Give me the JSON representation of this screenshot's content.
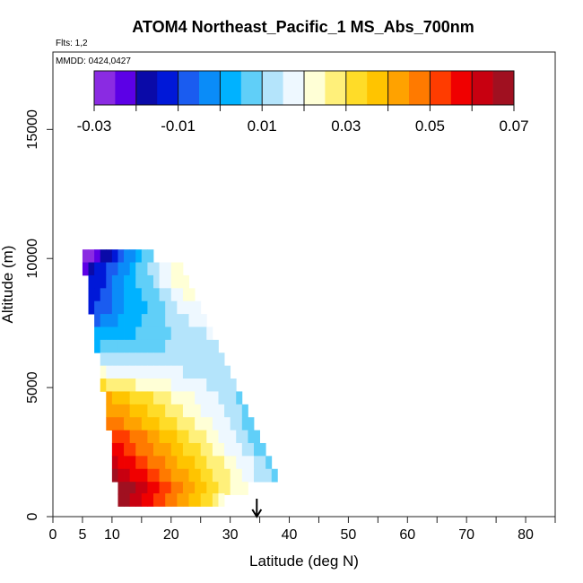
{
  "chart_data": {
    "type": "heatmap",
    "title": "ATOM4 Northeast_Pacific_1 MS_Abs_700nm",
    "annotations": {
      "flights": "Flts: 1,2",
      "dates": "MMDD: 0424,0427"
    },
    "xlabel": "Latitude (deg N)",
    "ylabel": "Altitude (m)",
    "xlim": [
      0,
      85
    ],
    "ylim": [
      0,
      18000
    ],
    "x_ticks": [
      0,
      5,
      10,
      20,
      30,
      40,
      50,
      60,
      70,
      80
    ],
    "x_minor_ticks": [
      15,
      25,
      35,
      45,
      55,
      65,
      75,
      85
    ],
    "y_ticks": [
      0,
      5000,
      10000,
      15000
    ],
    "grid": false,
    "colorbar": {
      "min": -0.03,
      "max": 0.07,
      "ticks": [
        "-0.03",
        "-0.01",
        "0.01",
        "0.03",
        "0.05",
        "0.07"
      ],
      "colors": [
        "#8a2be2",
        "#5c00e6",
        "#0a0aa8",
        "#0018d8",
        "#1a5cf0",
        "#0a8cf8",
        "#00b2ff",
        "#60cff8",
        "#b4e4fb",
        "#eef8ff",
        "#ffffd6",
        "#fff07a",
        "#ffdc28",
        "#ffc400",
        "#ffa200",
        "#ff7a00",
        "#ff3c00",
        "#f00000",
        "#c80010",
        "#a01020"
      ]
    },
    "marker_latitude": 34.5,
    "rows": [
      {
        "alt": 10100,
        "lat_start": 5,
        "lat_end": 17,
        "v_start": -0.03,
        "v_end": 0.01
      },
      {
        "alt": 9600,
        "lat_start": 5,
        "lat_end": 22,
        "v_start": -0.02,
        "v_end": 0.025
      },
      {
        "alt": 9100,
        "lat_start": 6,
        "lat_end": 23,
        "v_start": -0.015,
        "v_end": 0.025
      },
      {
        "alt": 8600,
        "lat_start": 6,
        "lat_end": 24,
        "v_start": -0.012,
        "v_end": 0.022
      },
      {
        "alt": 8100,
        "lat_start": 6,
        "lat_end": 25,
        "v_start": -0.01,
        "v_end": 0.02
      },
      {
        "alt": 7600,
        "lat_start": 7,
        "lat_end": 26,
        "v_start": -0.005,
        "v_end": 0.018
      },
      {
        "alt": 7100,
        "lat_start": 7,
        "lat_end": 27,
        "v_start": 0.0,
        "v_end": 0.015
      },
      {
        "alt": 6600,
        "lat_start": 7,
        "lat_end": 28,
        "v_start": 0.005,
        "v_end": 0.014
      },
      {
        "alt": 6100,
        "lat_start": 8,
        "lat_end": 29,
        "v_start": 0.012,
        "v_end": 0.013
      },
      {
        "alt": 5600,
        "lat_start": 8,
        "lat_end": 30,
        "v_start": 0.02,
        "v_end": 0.012
      },
      {
        "alt": 5100,
        "lat_start": 8,
        "lat_end": 31,
        "v_start": 0.03,
        "v_end": 0.011
      },
      {
        "alt": 4600,
        "lat_start": 9,
        "lat_end": 32,
        "v_start": 0.04,
        "v_end": 0.01
      },
      {
        "alt": 4100,
        "lat_start": 9,
        "lat_end": 33,
        "v_start": 0.045,
        "v_end": 0.009
      },
      {
        "alt": 3600,
        "lat_start": 9,
        "lat_end": 34,
        "v_start": 0.05,
        "v_end": 0.008
      },
      {
        "alt": 3100,
        "lat_start": 10,
        "lat_end": 35,
        "v_start": 0.055,
        "v_end": 0.008
      },
      {
        "alt": 2600,
        "lat_start": 10,
        "lat_end": 36,
        "v_start": 0.058,
        "v_end": 0.008
      },
      {
        "alt": 2100,
        "lat_start": 10,
        "lat_end": 37,
        "v_start": 0.062,
        "v_end": 0.009
      },
      {
        "alt": 1600,
        "lat_start": 10,
        "lat_end": 38,
        "v_start": 0.066,
        "v_end": 0.008
      },
      {
        "alt": 1100,
        "lat_start": 11,
        "lat_end": 33,
        "v_start": 0.07,
        "v_end": 0.02
      },
      {
        "alt": 650,
        "lat_start": 11,
        "lat_end": 29,
        "v_start": 0.07,
        "v_end": 0.025
      }
    ]
  }
}
